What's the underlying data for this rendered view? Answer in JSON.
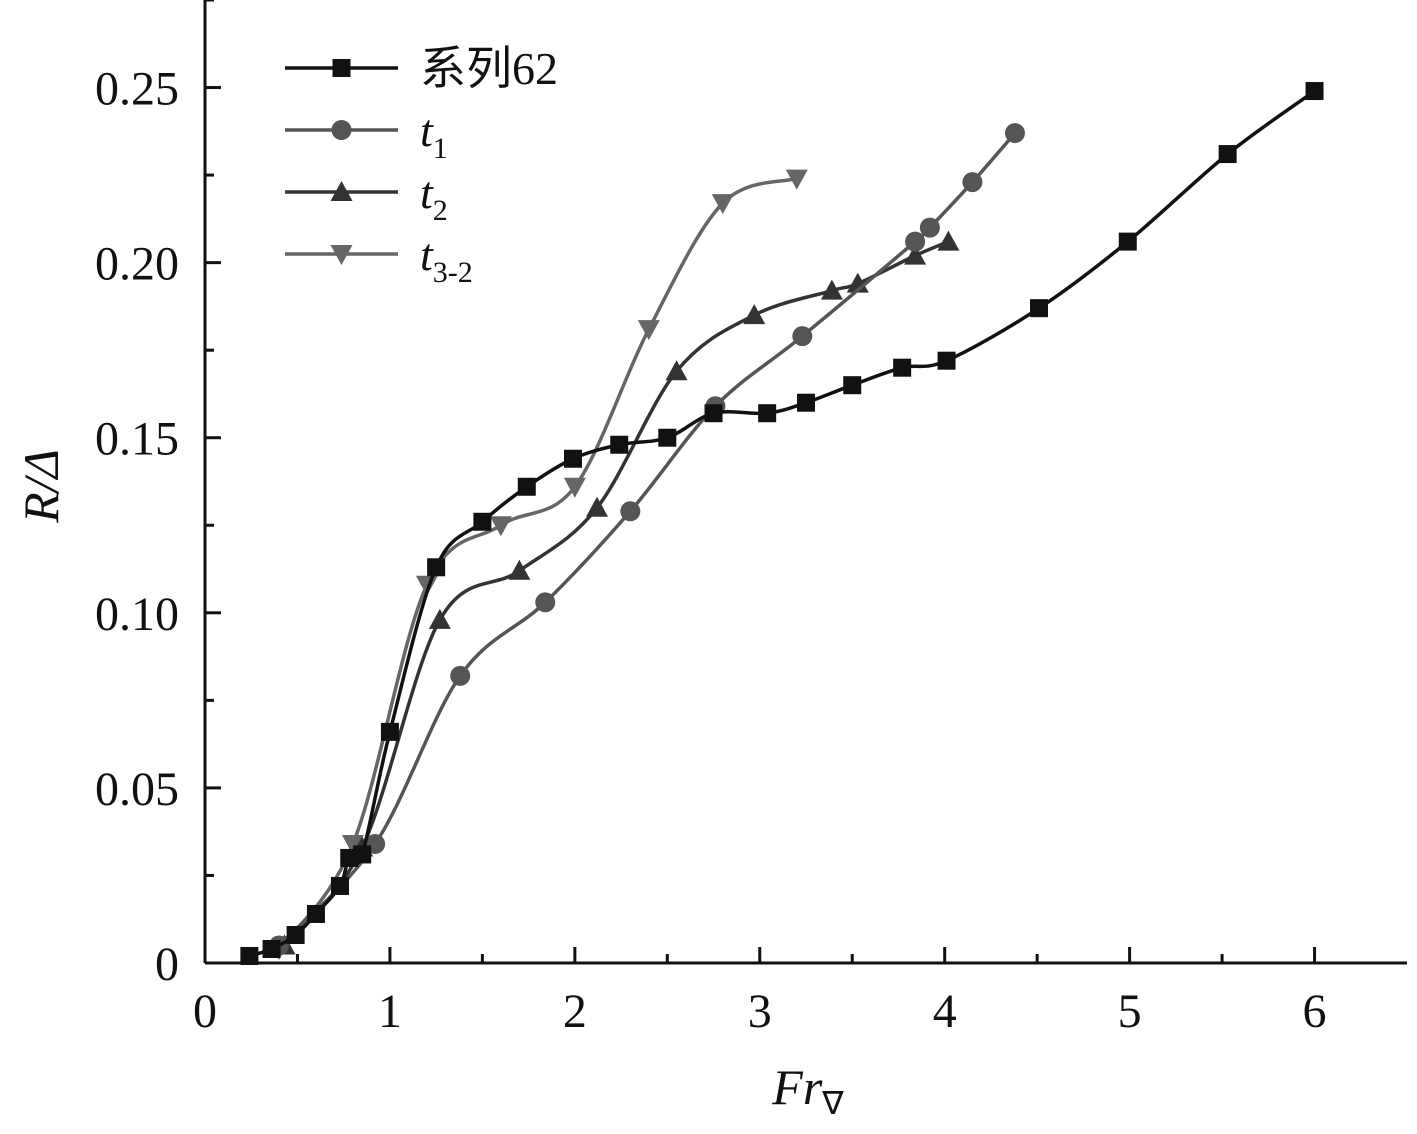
{
  "chart_data": {
    "type": "line",
    "xlabel": "Fr",
    "xlabel_subscript": "∇",
    "ylabel": "R/Δ",
    "xlim": [
      0,
      6.5
    ],
    "ylim": [
      0,
      0.275
    ],
    "x_ticks": [
      0,
      1,
      2,
      3,
      4,
      5,
      6
    ],
    "x_tick_labels": [
      "0",
      "1",
      "2",
      "3",
      "4",
      "5",
      "6"
    ],
    "y_ticks": [
      0,
      0.05,
      0.1,
      0.15,
      0.2,
      0.25
    ],
    "y_tick_labels": [
      "0",
      "0.05",
      "0.10",
      "0.15",
      "0.20",
      "0.25"
    ],
    "grid": false,
    "legend_position": "top-left",
    "series": [
      {
        "name": "系列62",
        "name_base": "系列62",
        "name_sub": "",
        "marker": "square",
        "color": "#111111",
        "x": [
          0.24,
          0.36,
          0.49,
          0.6,
          0.73,
          0.78,
          0.85,
          1.0,
          1.25,
          1.5,
          1.74,
          1.99,
          2.24,
          2.5,
          2.75,
          3.04,
          3.25,
          3.5,
          3.77,
          4.01,
          4.51,
          4.99,
          5.53,
          6.0
        ],
        "y": [
          0.002,
          0.004,
          0.008,
          0.014,
          0.022,
          0.03,
          0.031,
          0.066,
          0.113,
          0.126,
          0.136,
          0.144,
          0.148,
          0.15,
          0.157,
          0.157,
          0.16,
          0.165,
          0.17,
          0.172,
          0.187,
          0.206,
          0.231,
          0.249
        ]
      },
      {
        "name": "t1",
        "name_base": "t",
        "name_sub": "1",
        "marker": "circle",
        "color": "#555555",
        "x": [
          0.4,
          0.92,
          1.38,
          1.84,
          2.3,
          2.76,
          3.23,
          3.84,
          3.92,
          4.15,
          4.38
        ],
        "y": [
          0.005,
          0.034,
          0.082,
          0.103,
          0.129,
          0.159,
          0.179,
          0.206,
          0.21,
          0.223,
          0.237
        ]
      },
      {
        "name": "t2",
        "name_base": "t",
        "name_sub": "2",
        "marker": "triangle-up",
        "color": "#333333",
        "x": [
          0.43,
          0.85,
          1.27,
          1.7,
          2.12,
          2.55,
          2.97,
          3.39,
          3.53,
          3.84,
          4.02
        ],
        "y": [
          0.005,
          0.033,
          0.098,
          0.112,
          0.13,
          0.169,
          0.185,
          0.192,
          0.194,
          0.202,
          0.206
        ]
      },
      {
        "name": "t3-2",
        "name_base": "t",
        "name_sub": "3-2",
        "marker": "triangle-down",
        "color": "#666666",
        "x": [
          0.4,
          0.8,
          1.2,
          1.6,
          2.0,
          2.4,
          2.8,
          3.2
        ],
        "y": [
          0.004,
          0.034,
          0.108,
          0.125,
          0.136,
          0.181,
          0.217,
          0.224
        ]
      }
    ]
  }
}
